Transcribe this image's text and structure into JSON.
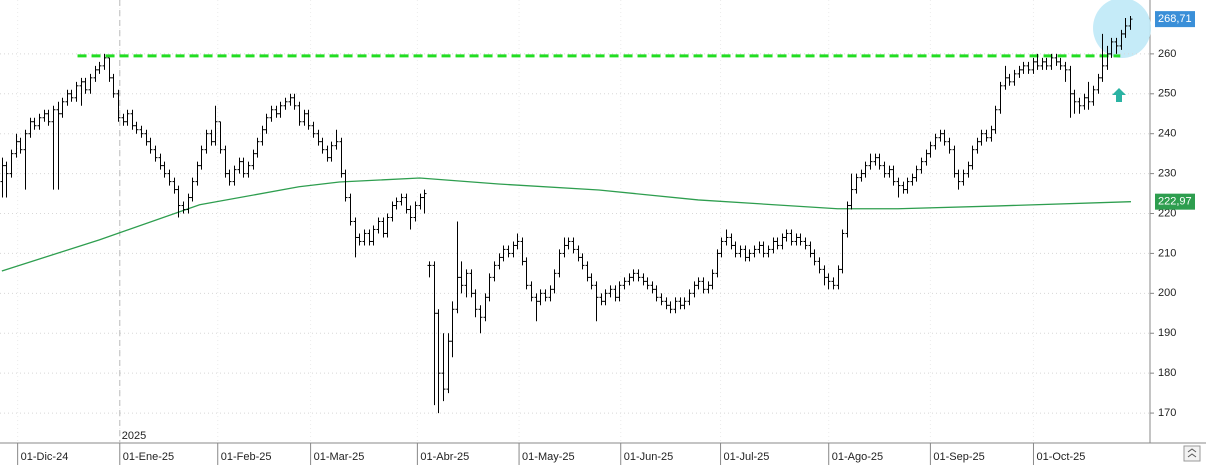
{
  "chart_data": {
    "type": "ohlc",
    "color": "#000000",
    "ylim": [
      162.5,
      273.5
    ],
    "yticks": [
      170,
      180,
      190,
      200,
      210,
      220,
      230,
      240,
      250,
      260
    ],
    "xlim": [
      -0.4,
      247.3
    ],
    "xticks": [
      {
        "value": 3.4,
        "label": "01-Dic-24"
      },
      {
        "value": 25.4,
        "label": "01-Ene-25"
      },
      {
        "value": 46.5,
        "label": "01-Feb-25"
      },
      {
        "value": 66.5,
        "label": "01-Mar-25"
      },
      {
        "value": 89.5,
        "label": "01-Abr-25"
      },
      {
        "value": 111.4,
        "label": "01-May-25"
      },
      {
        "value": 133.3,
        "label": "01-Jun-25"
      },
      {
        "value": 154.8,
        "label": "01-Jul-25"
      },
      {
        "value": 178.1,
        "label": "01-Ago-25"
      },
      {
        "value": 200,
        "label": "01-Sep-25"
      },
      {
        "value": 222.2,
        "label": "01-Oct-25"
      }
    ],
    "grid": true,
    "year_marker": {
      "value": 25.4,
      "label": "2025"
    },
    "open": [
      228,
      232,
      230,
      235,
      238,
      236,
      240,
      243,
      242,
      244,
      245,
      243,
      246,
      245,
      248,
      250,
      249,
      252,
      253,
      251,
      254,
      256,
      257,
      259,
      254,
      250,
      244,
      243,
      245,
      242,
      241,
      240,
      238,
      236,
      234,
      232,
      230,
      228,
      226,
      222,
      221,
      224,
      228,
      232,
      236,
      240,
      238,
      243,
      236,
      230,
      228,
      231,
      233,
      230,
      232,
      235,
      238,
      241,
      244,
      246,
      245,
      247,
      248,
      249,
      247,
      243,
      245,
      242,
      240,
      238,
      236,
      234,
      237,
      238,
      230,
      224,
      218,
      214,
      213,
      215,
      213,
      216,
      218,
      215,
      219,
      222,
      223,
      224,
      221,
      219,
      222,
      224,
      207,
      207,
      195,
      180,
      176,
      188,
      196,
      204,
      202,
      205,
      200,
      196,
      194,
      199,
      204,
      207,
      209,
      211,
      210,
      212,
      213,
      208,
      202,
      199,
      198,
      200,
      199,
      201,
      205,
      210,
      212,
      213,
      211,
      209,
      207,
      204,
      202,
      199,
      198,
      200,
      201,
      199,
      202,
      203,
      204,
      205,
      204,
      203,
      202,
      201,
      199,
      198,
      197,
      196,
      198,
      197,
      198,
      200,
      202,
      203,
      201,
      202,
      205,
      210,
      213,
      214,
      212,
      210,
      211,
      209,
      210,
      211,
      212,
      210,
      211,
      213,
      212,
      214,
      215,
      213,
      214,
      213,
      212,
      210,
      208,
      206,
      204,
      203,
      202,
      206,
      215,
      222,
      226,
      229,
      230,
      232,
      233,
      234,
      232,
      230,
      231,
      228,
      227,
      226,
      228,
      229,
      231,
      233,
      235,
      237,
      239,
      240,
      238,
      236,
      230,
      228,
      230,
      232,
      236,
      238,
      240,
      239,
      241,
      246,
      252,
      254,
      253,
      255,
      256,
      257,
      256,
      258,
      257,
      258,
      257,
      259,
      258,
      257,
      256,
      250,
      248,
      247,
      249,
      248,
      251,
      254,
      257,
      260,
      263,
      262,
      265,
      267
    ],
    "high": [
      234,
      233,
      236,
      240,
      239,
      241,
      244,
      244,
      245,
      246,
      246,
      247,
      248,
      249,
      251,
      251,
      253,
      254,
      254,
      255,
      257,
      258,
      260,
      259,
      255,
      251,
      245,
      246,
      246,
      243,
      242,
      241,
      239,
      237,
      235,
      233,
      231,
      229,
      227,
      223,
      225,
      229,
      233,
      237,
      241,
      241,
      247,
      243,
      237,
      231,
      232,
      234,
      234,
      233,
      236,
      239,
      242,
      245,
      247,
      247,
      248,
      249,
      250,
      250,
      248,
      246,
      246,
      243,
      241,
      239,
      237,
      238,
      241,
      239,
      231,
      225,
      219,
      215,
      216,
      216,
      217,
      219,
      219,
      220,
      223,
      224,
      225,
      225,
      222,
      223,
      225,
      226,
      208,
      208,
      196,
      190,
      190,
      198,
      218,
      208,
      206,
      206,
      201,
      197,
      200,
      205,
      208,
      210,
      212,
      212,
      213,
      215,
      214,
      209,
      203,
      200,
      201,
      201,
      202,
      206,
      211,
      214,
      214,
      214,
      212,
      210,
      208,
      205,
      203,
      200,
      201,
      202,
      202,
      203,
      204,
      205,
      206,
      206,
      205,
      204,
      203,
      202,
      200,
      199,
      198,
      199,
      199,
      199,
      201,
      203,
      204,
      204,
      203,
      206,
      211,
      214,
      216,
      215,
      213,
      212,
      212,
      211,
      212,
      213,
      213,
      212,
      214,
      214,
      215,
      216,
      216,
      215,
      215,
      214,
      213,
      211,
      209,
      207,
      205,
      204,
      207,
      216,
      223,
      230,
      230,
      231,
      233,
      235,
      235,
      235,
      233,
      232,
      232,
      229,
      228,
      229,
      230,
      232,
      234,
      236,
      238,
      240,
      241,
      241,
      239,
      237,
      231,
      231,
      233,
      237,
      239,
      241,
      241,
      242,
      247,
      253,
      257,
      255,
      256,
      257,
      258,
      258,
      259,
      260,
      259,
      259,
      260,
      260,
      259,
      258,
      257,
      251,
      249,
      250,
      253,
      252,
      255,
      265,
      262,
      264,
      264,
      266,
      269,
      269.5
    ],
    "low": [
      224,
      224,
      229,
      234,
      235,
      226,
      239,
      241,
      241,
      243,
      242,
      226,
      226,
      244,
      247,
      248,
      248,
      247,
      250,
      250,
      253,
      255,
      256,
      253,
      249,
      243,
      242,
      242,
      241,
      240,
      239,
      237,
      235,
      233,
      231,
      229,
      227,
      225,
      219,
      220,
      220,
      223,
      227,
      231,
      235,
      237,
      237,
      235,
      229,
      227,
      227,
      230,
      229,
      229,
      231,
      234,
      237,
      240,
      243,
      244,
      244,
      246,
      247,
      246,
      242,
      242,
      241,
      239,
      237,
      235,
      233,
      233,
      236,
      229,
      223,
      217,
      209,
      212,
      212,
      212,
      212,
      215,
      214,
      214,
      218,
      221,
      222,
      220,
      216,
      218,
      221,
      220,
      204,
      172,
      170,
      173,
      175,
      184,
      195,
      200,
      199,
      199,
      194,
      190,
      193,
      198,
      203,
      206,
      208,
      209,
      209,
      211,
      207,
      201,
      198,
      193,
      197,
      198,
      198,
      200,
      204,
      209,
      211,
      210,
      208,
      206,
      203,
      201,
      193,
      197,
      197,
      199,
      198,
      198,
      201,
      202,
      203,
      203,
      202,
      201,
      200,
      198,
      197,
      196,
      195,
      195,
      196,
      196,
      197,
      199,
      201,
      200,
      200,
      201,
      204,
      209,
      212,
      211,
      209,
      209,
      208,
      208,
      209,
      210,
      209,
      209,
      210,
      211,
      211,
      213,
      212,
      212,
      212,
      211,
      209,
      207,
      205,
      202,
      201,
      201,
      201,
      205,
      214,
      221,
      225,
      228,
      229,
      231,
      232,
      231,
      229,
      229,
      227,
      224,
      225,
      225,
      227,
      228,
      230,
      232,
      234,
      236,
      238,
      237,
      235,
      229,
      226,
      227,
      229,
      231,
      235,
      237,
      238,
      238,
      240,
      245,
      251,
      252,
      252,
      254,
      255,
      255,
      255,
      256,
      256,
      256,
      256,
      257,
      256,
      253,
      244,
      245,
      245,
      246,
      246,
      247,
      250,
      253,
      256,
      259,
      260,
      261,
      264,
      266
    ],
    "close": [
      232,
      230,
      235,
      238,
      236,
      240,
      243,
      242,
      244,
      245,
      243,
      246,
      245,
      248,
      250,
      249,
      252,
      253,
      251,
      254,
      256,
      257,
      259,
      254,
      250,
      244,
      243,
      245,
      242,
      241,
      240,
      238,
      236,
      234,
      232,
      230,
      228,
      226,
      222,
      221,
      224,
      228,
      232,
      236,
      240,
      238,
      243,
      236,
      230,
      228,
      231,
      233,
      230,
      232,
      235,
      238,
      241,
      244,
      246,
      245,
      247,
      248,
      249,
      247,
      243,
      245,
      242,
      240,
      238,
      236,
      234,
      237,
      238,
      230,
      224,
      218,
      214,
      213,
      215,
      213,
      216,
      218,
      215,
      219,
      222,
      223,
      224,
      221,
      219,
      222,
      224,
      225,
      207,
      195,
      180,
      176,
      188,
      196,
      204,
      202,
      205,
      200,
      196,
      194,
      199,
      204,
      207,
      209,
      211,
      210,
      212,
      213,
      208,
      202,
      199,
      198,
      200,
      199,
      201,
      205,
      210,
      212,
      213,
      211,
      209,
      207,
      204,
      202,
      199,
      198,
      200,
      201,
      199,
      202,
      203,
      204,
      205,
      204,
      203,
      202,
      201,
      199,
      198,
      197,
      196,
      198,
      197,
      198,
      200,
      202,
      203,
      201,
      202,
      205,
      210,
      213,
      214,
      212,
      210,
      211,
      209,
      210,
      211,
      212,
      210,
      211,
      213,
      212,
      214,
      215,
      213,
      214,
      213,
      212,
      210,
      208,
      206,
      204,
      203,
      202,
      206,
      215,
      222,
      226,
      229,
      230,
      232,
      233,
      234,
      232,
      230,
      231,
      228,
      227,
      226,
      228,
      229,
      231,
      233,
      235,
      237,
      239,
      240,
      238,
      236,
      230,
      228,
      230,
      232,
      236,
      238,
      240,
      239,
      241,
      246,
      252,
      254,
      253,
      255,
      256,
      257,
      256,
      258,
      257,
      258,
      257,
      259,
      258,
      257,
      256,
      250,
      248,
      247,
      249,
      248,
      251,
      254,
      257,
      260,
      263,
      262,
      265,
      267,
      268.71
    ],
    "moving_average": {
      "color": "#2e9e4f",
      "x": [
        0,
        21,
        42.6,
        64,
        72.7,
        90,
        107,
        128.6,
        150,
        180,
        193,
        214.6,
        243.2
      ],
      "values": [
        205.6,
        213.4,
        222.2,
        226.7,
        227.9,
        228.9,
        227.4,
        225.9,
        223.4,
        221.2,
        221.2,
        221.9,
        222.97
      ]
    },
    "resistance": {
      "value": 259.5,
      "from": 16.3,
      "to": 240.9,
      "color": "#22dd22"
    },
    "price_labels": [
      {
        "value": 268.71,
        "label": "268,71",
        "color": "#3a8fd8"
      },
      {
        "value": 222.97,
        "label": "222,97",
        "color": "#2e9e4f"
      }
    ]
  }
}
